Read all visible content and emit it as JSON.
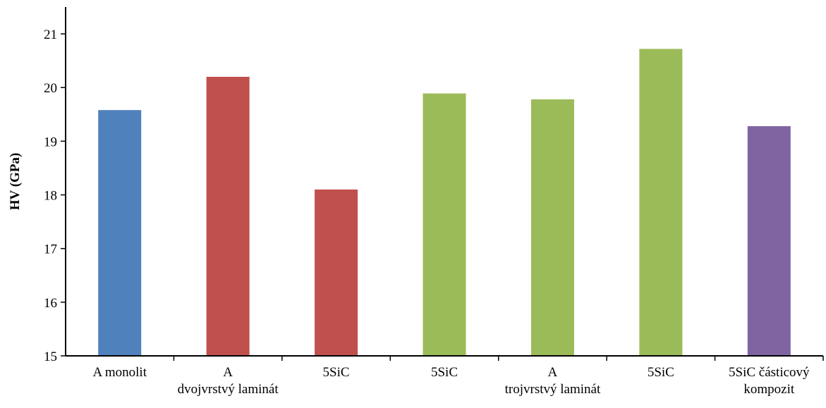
{
  "chart_data": {
    "type": "bar",
    "title": "",
    "xlabel": "",
    "ylabel": "HV (GPa)",
    "ylim": [
      15,
      21.5
    ],
    "yticks": [
      15,
      16,
      17,
      18,
      19,
      20,
      21
    ],
    "grid": false,
    "legend": "none",
    "categories": [
      [
        "A monolit"
      ],
      [
        "A",
        "dvojvrstvý laminát"
      ],
      [
        "5SiC"
      ],
      [
        "5SiC"
      ],
      [
        "A",
        "trojvrstvý laminát"
      ],
      [
        "5SiC"
      ],
      [
        "5SiC částicový",
        "kompozit"
      ]
    ],
    "values": [
      19.58,
      20.2,
      18.1,
      19.89,
      19.78,
      20.72,
      19.28
    ],
    "colors": [
      "#4f81bd",
      "#c0504d",
      "#c0504d",
      "#9bbb59",
      "#9bbb59",
      "#9bbb59",
      "#8064a2"
    ]
  }
}
